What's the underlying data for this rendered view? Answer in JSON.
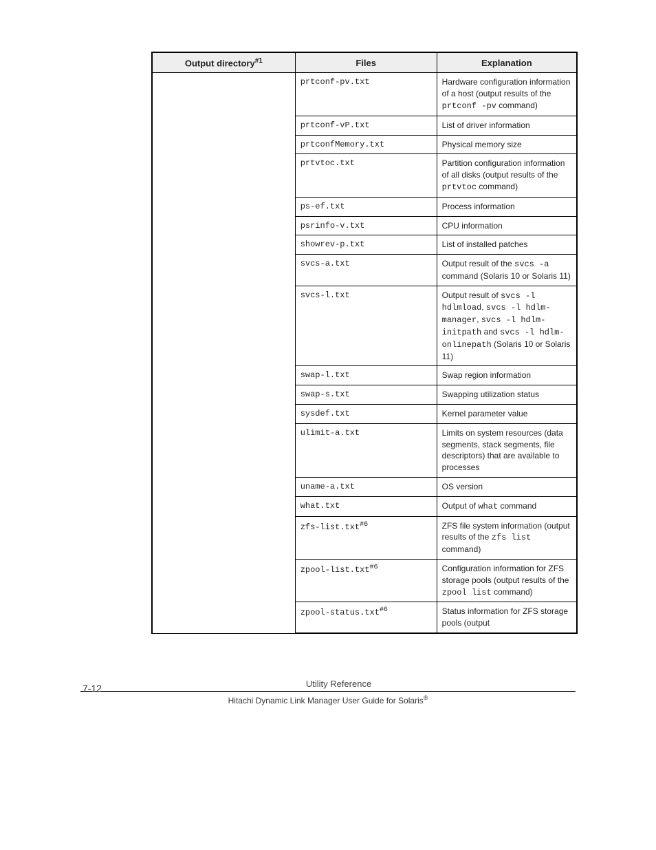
{
  "table": {
    "headers": {
      "output_dir": "Output directory",
      "output_dir_sup": "#1",
      "files": "Files",
      "explanation": "Explanation"
    },
    "rows": [
      {
        "file": "prtconf-pv.txt",
        "expl_pre": "Hardware configuration information of a host (output results of the ",
        "expl_mono": "prtconf -pv",
        "expl_post": " command)"
      },
      {
        "file": "prtconf-vP.txt",
        "expl_text": "List of driver information"
      },
      {
        "file": "prtconfMemory.txt",
        "expl_text": "Physical memory size"
      },
      {
        "file": "prtvtoc.txt",
        "expl_pre": "Partition configuration information of all disks (output results of the ",
        "expl_mono": "prtvtoc",
        "expl_post": " command)"
      },
      {
        "file": "ps-ef.txt",
        "expl_text": "Process information"
      },
      {
        "file": "psrinfo-v.txt",
        "expl_text": "CPU information"
      },
      {
        "file": "showrev-p.txt",
        "expl_text": "List of installed patches"
      },
      {
        "file": "svcs-a.txt",
        "expl_pre": "Output result of the ",
        "expl_mono": "svcs -a",
        "expl_post": " command (Solaris 10 or Solaris 11)"
      },
      {
        "file": "svcs-l.txt",
        "expl_parts": [
          {
            "t": "Output result of ",
            "mono": false
          },
          {
            "t": "svcs -l hdlmload",
            "mono": true
          },
          {
            "t": ", ",
            "mono": false
          },
          {
            "t": "svcs -l hdlm-manager",
            "mono": true
          },
          {
            "t": ", ",
            "mono": false
          },
          {
            "t": "svcs -l hdlm-initpath",
            "mono": true
          },
          {
            "t": " and ",
            "mono": false
          },
          {
            "t": "svcs -l hdlm-onlinepath",
            "mono": true
          },
          {
            "t": " (Solaris 10 or Solaris 11)",
            "mono": false
          }
        ]
      },
      {
        "file": "swap-l.txt",
        "expl_text": "Swap region information"
      },
      {
        "file": "swap-s.txt",
        "expl_text": "Swapping utilization status"
      },
      {
        "file": "sysdef.txt",
        "expl_text": "Kernel parameter value"
      },
      {
        "file": "ulimit-a.txt",
        "expl_text": "Limits on system resources (data segments, stack segments, file descriptors) that are available to processes"
      },
      {
        "file": "uname-a.txt",
        "expl_text": "OS version"
      },
      {
        "file": "what.txt",
        "expl_pre": "Output of ",
        "expl_mono": "what",
        "expl_post": " command"
      },
      {
        "file": "zfs-list.txt",
        "file_sup": "#6",
        "expl_pre": "ZFS file system information (output results of the ",
        "expl_mono": "zfs list",
        "expl_post": " command)"
      },
      {
        "file": "zpool-list.txt",
        "file_sup": "#6",
        "expl_pre": "Configuration information for ZFS storage pools (output results of the ",
        "expl_mono": "zpool list",
        "expl_post": " command)"
      },
      {
        "file": "zpool-status.txt",
        "file_sup": "#6",
        "expl_text": "Status information for ZFS storage pools (output"
      }
    ]
  },
  "footer": {
    "page_num": "7-12",
    "section": "Utility Reference",
    "doc_pre": "Hitachi Dynamic Link Manager User Guide for Solaris",
    "reg": "®"
  }
}
